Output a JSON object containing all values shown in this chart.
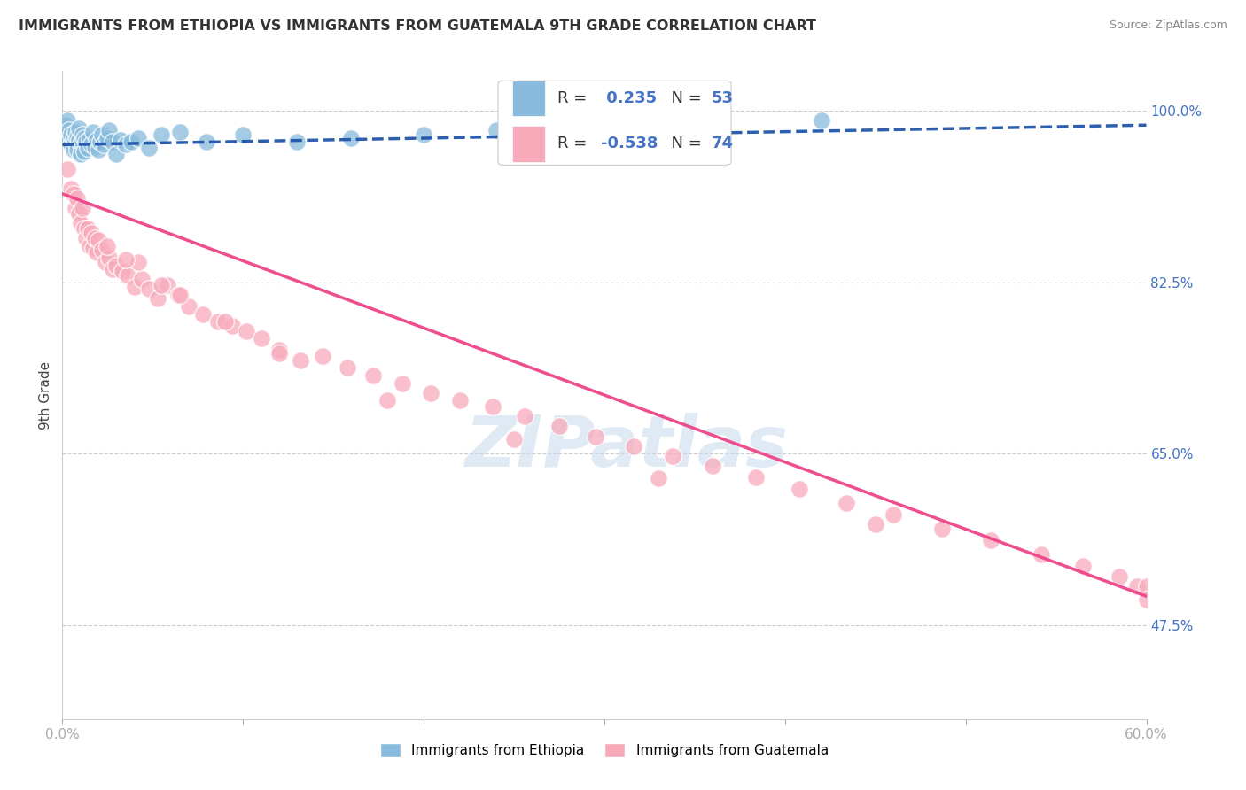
{
  "title": "IMMIGRANTS FROM ETHIOPIA VS IMMIGRANTS FROM GUATEMALA 9TH GRADE CORRELATION CHART",
  "source": "Source: ZipAtlas.com",
  "ylabel": "9th Grade",
  "x_min": 0.0,
  "x_max": 0.6,
  "y_min": 0.38,
  "y_max": 1.04,
  "y_ticks_right": [
    0.475,
    0.65,
    0.825,
    1.0
  ],
  "y_tick_labels_right": [
    "47.5%",
    "65.0%",
    "82.5%",
    "100.0%"
  ],
  "legend_blue_label": "Immigrants from Ethiopia",
  "legend_pink_label": "Immigrants from Guatemala",
  "R_blue": 0.235,
  "N_blue": 53,
  "R_pink": -0.538,
  "N_pink": 74,
  "blue_color": "#88bbdd",
  "pink_color": "#f8aabb",
  "blue_line_color": "#2255aa",
  "pink_line_color": "#ee4488",
  "watermark": "ZIPatlas",
  "ethiopia_x": [
    0.002,
    0.003,
    0.003,
    0.004,
    0.004,
    0.005,
    0.005,
    0.006,
    0.006,
    0.007,
    0.007,
    0.008,
    0.008,
    0.009,
    0.009,
    0.01,
    0.01,
    0.011,
    0.011,
    0.012,
    0.012,
    0.013,
    0.014,
    0.015,
    0.016,
    0.017,
    0.018,
    0.019,
    0.02,
    0.021,
    0.022,
    0.023,
    0.025,
    0.026,
    0.028,
    0.03,
    0.032,
    0.035,
    0.038,
    0.042,
    0.048,
    0.055,
    0.065,
    0.08,
    0.1,
    0.13,
    0.16,
    0.2,
    0.24,
    0.28,
    0.32,
    0.36,
    0.42
  ],
  "ethiopia_y": [
    0.985,
    0.975,
    0.99,
    0.98,
    0.97,
    0.965,
    0.975,
    0.972,
    0.96,
    0.978,
    0.968,
    0.973,
    0.96,
    0.97,
    0.982,
    0.965,
    0.955,
    0.975,
    0.968,
    0.972,
    0.958,
    0.968,
    0.962,
    0.971,
    0.965,
    0.978,
    0.963,
    0.97,
    0.96,
    0.968,
    0.975,
    0.965,
    0.972,
    0.98,
    0.968,
    0.955,
    0.97,
    0.965,
    0.968,
    0.972,
    0.962,
    0.975,
    0.978,
    0.968,
    0.975,
    0.968,
    0.972,
    0.975,
    0.98,
    0.972,
    0.978,
    0.98,
    0.99
  ],
  "guatemala_x": [
    0.003,
    0.005,
    0.006,
    0.007,
    0.008,
    0.009,
    0.01,
    0.011,
    0.012,
    0.013,
    0.014,
    0.015,
    0.016,
    0.017,
    0.018,
    0.019,
    0.02,
    0.022,
    0.024,
    0.026,
    0.028,
    0.03,
    0.033,
    0.036,
    0.04,
    0.044,
    0.048,
    0.053,
    0.058,
    0.064,
    0.07,
    0.078,
    0.086,
    0.094,
    0.102,
    0.11,
    0.12,
    0.132,
    0.144,
    0.158,
    0.172,
    0.188,
    0.204,
    0.22,
    0.238,
    0.256,
    0.275,
    0.295,
    0.316,
    0.338,
    0.36,
    0.384,
    0.408,
    0.434,
    0.46,
    0.487,
    0.514,
    0.542,
    0.565,
    0.585,
    0.595,
    0.6,
    0.6,
    0.042,
    0.065,
    0.09,
    0.12,
    0.055,
    0.035,
    0.025,
    0.18,
    0.25,
    0.33,
    0.45
  ],
  "guatemala_y": [
    0.94,
    0.92,
    0.915,
    0.9,
    0.91,
    0.895,
    0.885,
    0.9,
    0.88,
    0.87,
    0.88,
    0.862,
    0.875,
    0.86,
    0.87,
    0.855,
    0.868,
    0.858,
    0.845,
    0.85,
    0.838,
    0.842,
    0.836,
    0.832,
    0.82,
    0.828,
    0.818,
    0.808,
    0.822,
    0.812,
    0.8,
    0.792,
    0.785,
    0.78,
    0.775,
    0.768,
    0.756,
    0.745,
    0.75,
    0.738,
    0.73,
    0.722,
    0.712,
    0.705,
    0.698,
    0.688,
    0.678,
    0.668,
    0.658,
    0.648,
    0.638,
    0.626,
    0.614,
    0.6,
    0.588,
    0.574,
    0.562,
    0.548,
    0.536,
    0.525,
    0.515,
    0.515,
    0.502,
    0.845,
    0.812,
    0.785,
    0.752,
    0.822,
    0.848,
    0.862,
    0.705,
    0.665,
    0.625,
    0.578
  ]
}
